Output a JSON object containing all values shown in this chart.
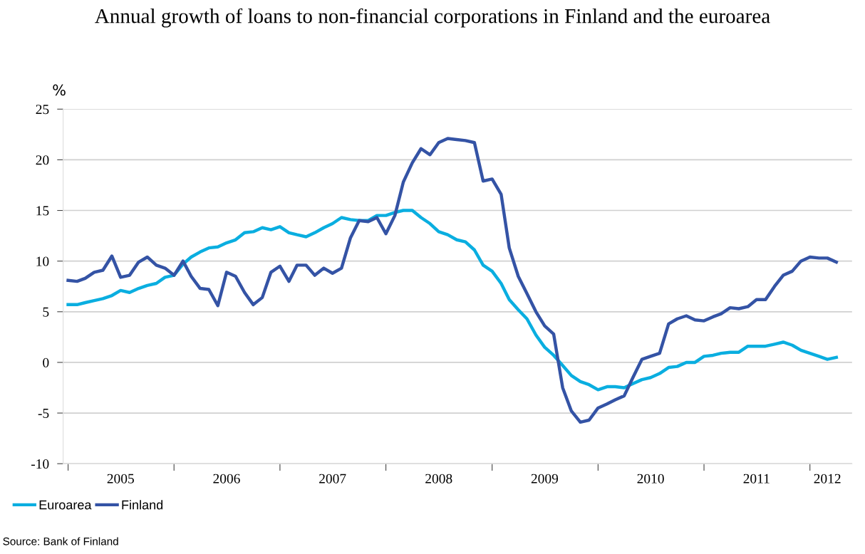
{
  "chart_data": {
    "type": "line",
    "title": "Annual growth of loans to non-financial corporations in Finland and the euroarea",
    "ylabel": "%",
    "x": [
      "2005-01",
      "2005-02",
      "2005-03",
      "2005-04",
      "2005-05",
      "2005-06",
      "2005-07",
      "2005-08",
      "2005-09",
      "2005-10",
      "2005-11",
      "2005-12",
      "2006-01",
      "2006-02",
      "2006-03",
      "2006-04",
      "2006-05",
      "2006-06",
      "2006-07",
      "2006-08",
      "2006-09",
      "2006-10",
      "2006-11",
      "2006-12",
      "2007-01",
      "2007-02",
      "2007-03",
      "2007-04",
      "2007-05",
      "2007-06",
      "2007-07",
      "2007-08",
      "2007-09",
      "2007-10",
      "2007-11",
      "2007-12",
      "2008-01",
      "2008-02",
      "2008-03",
      "2008-04",
      "2008-05",
      "2008-06",
      "2008-07",
      "2008-08",
      "2008-09",
      "2008-10",
      "2008-11",
      "2008-12",
      "2009-01",
      "2009-02",
      "2009-03",
      "2009-04",
      "2009-05",
      "2009-06",
      "2009-07",
      "2009-08",
      "2009-09",
      "2009-10",
      "2009-11",
      "2009-12",
      "2010-01",
      "2010-02",
      "2010-03",
      "2010-04",
      "2010-05",
      "2010-06",
      "2010-07",
      "2010-08",
      "2010-09",
      "2010-10",
      "2010-11",
      "2010-12",
      "2011-01",
      "2011-02",
      "2011-03",
      "2011-04",
      "2011-05",
      "2011-06",
      "2011-07",
      "2011-08",
      "2011-09",
      "2011-10",
      "2011-11",
      "2011-12",
      "2012-01",
      "2012-02",
      "2012-03",
      "2012-04"
    ],
    "series": [
      {
        "name": "Euroarea",
        "color": "#0aaee0",
        "values": [
          5.7,
          5.7,
          5.9,
          6.1,
          6.3,
          6.6,
          7.1,
          6.9,
          7.3,
          7.6,
          7.8,
          8.4,
          8.6,
          9.7,
          10.4,
          10.9,
          11.3,
          11.4,
          11.8,
          12.1,
          12.8,
          12.9,
          13.3,
          13.1,
          13.4,
          12.8,
          12.6,
          12.4,
          12.8,
          13.3,
          13.7,
          14.3,
          14.1,
          14.0,
          14.0,
          14.5,
          14.5,
          14.8,
          15.0,
          15.0,
          14.3,
          13.7,
          12.9,
          12.6,
          12.1,
          11.9,
          11.1,
          9.6,
          9.0,
          7.8,
          6.2,
          5.2,
          4.3,
          2.7,
          1.5,
          0.7,
          -0.3,
          -1.3,
          -1.9,
          -2.2,
          -2.7,
          -2.4,
          -2.4,
          -2.5,
          -2.1,
          -1.7,
          -1.5,
          -1.1,
          -0.5,
          -0.4,
          0.0,
          0.0,
          0.6,
          0.7,
          0.9,
          1.0,
          1.0,
          1.6,
          1.6,
          1.6,
          1.8,
          2.0,
          1.7,
          1.2,
          0.9,
          0.6,
          0.3,
          0.5
        ]
      },
      {
        "name": "Finland",
        "color": "#3453a5",
        "values": [
          8.1,
          8.0,
          8.3,
          8.9,
          9.1,
          10.5,
          8.4,
          8.6,
          9.9,
          10.4,
          9.6,
          9.3,
          8.6,
          10.0,
          8.5,
          7.3,
          7.2,
          5.6,
          8.9,
          8.5,
          6.9,
          5.7,
          6.4,
          8.9,
          9.5,
          8.0,
          9.6,
          9.6,
          8.6,
          9.3,
          8.8,
          9.3,
          12.3,
          14.0,
          13.9,
          14.3,
          12.7,
          14.5,
          17.8,
          19.7,
          21.1,
          20.5,
          21.7,
          22.1,
          22.0,
          21.9,
          21.7,
          17.9,
          18.1,
          16.6,
          11.3,
          8.5,
          6.8,
          5.0,
          3.6,
          2.8,
          -2.5,
          -4.8,
          -5.9,
          -5.7,
          -4.5,
          -4.1,
          -3.7,
          -3.3,
          -1.5,
          0.3,
          0.6,
          0.9,
          3.8,
          4.3,
          4.6,
          4.2,
          4.1,
          4.5,
          4.8,
          5.4,
          5.3,
          5.5,
          6.2,
          6.2,
          7.5,
          8.6,
          9.0,
          10.0,
          10.4,
          10.3,
          10.3,
          9.9
        ]
      }
    ],
    "xlim": [
      "2004-12-15",
      "2012-05-25"
    ],
    "xticks": [
      {
        "value": "2005",
        "label": null
      },
      {
        "value": "2005-07",
        "label": "2005"
      },
      {
        "value": "2006",
        "label": null
      },
      {
        "value": "2006-07",
        "label": "2006"
      },
      {
        "value": "2007",
        "label": null
      },
      {
        "value": "2007-07",
        "label": "2007"
      },
      {
        "value": "2008",
        "label": null
      },
      {
        "value": "2008-07",
        "label": "2008"
      },
      {
        "value": "2009",
        "label": null
      },
      {
        "value": "2009-07",
        "label": "2009"
      },
      {
        "value": "2010",
        "label": null
      },
      {
        "value": "2010-07",
        "label": "2010"
      },
      {
        "value": "2011",
        "label": null
      },
      {
        "value": "2011-07",
        "label": "2011"
      },
      {
        "value": "2012",
        "label": null
      },
      {
        "value": "2012-03",
        "label": "2012"
      }
    ],
    "ylim": [
      -10,
      25
    ],
    "yticks": [
      -10,
      -5,
      0,
      5,
      10,
      15,
      20,
      25
    ],
    "grid": "y",
    "legend": "bottom left",
    "marker": "none",
    "line_style": "solid",
    "annotations": [
      "Source: Bank of Finland"
    ]
  }
}
